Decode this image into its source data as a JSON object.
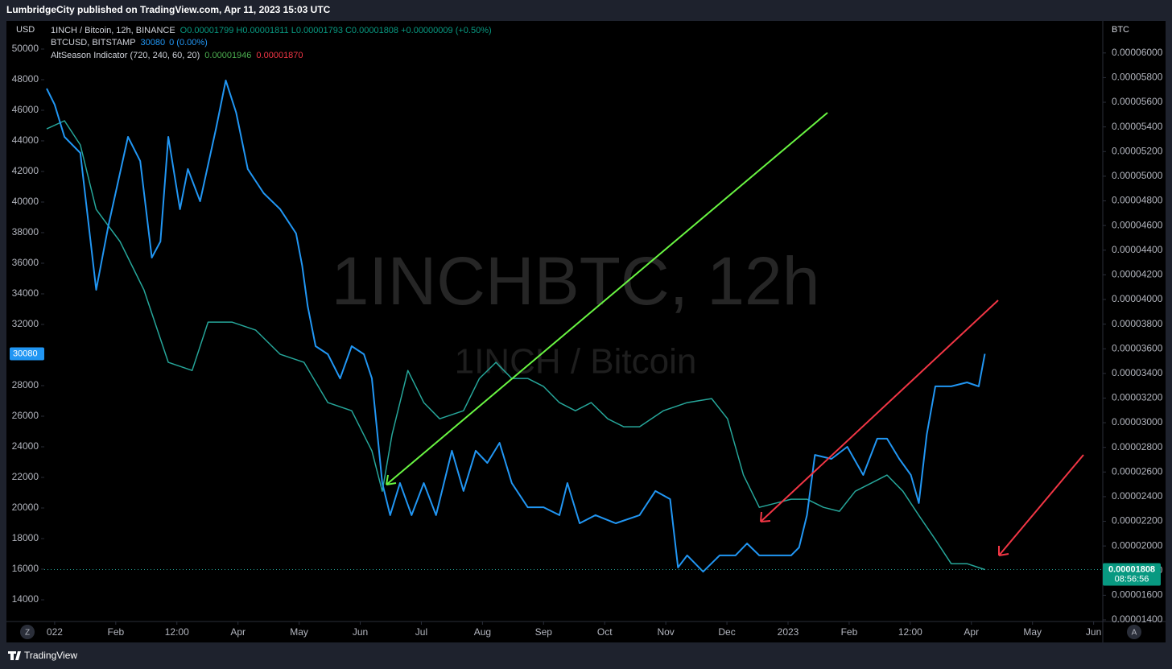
{
  "header": "LumbridgeCity published on TradingView.com, Apr 11, 2023 15:03 UTC",
  "footer": "TradingView",
  "buttons": [
    "Z",
    "A"
  ],
  "chart_data": {
    "type": "line",
    "watermark": "1INCHBTC, 12h",
    "watermark_sub": "1INCH / Bitcoin",
    "ylabel": "USD",
    "y2label": "BTC",
    "ohlc": "O0.00001799 H0.00001811 L0.00001793 C0.00001808 +0.00000009 (+0.50%)",
    "btc_last": "30080",
    "btc_change": "0 (0.00%)",
    "indicator": {
      "name": "AltSeason Indicator (720, 240, 60, 20)",
      "values": [
        "0.00001946",
        "0.00001870"
      ],
      "colors": [
        "#4caf50",
        "#f23645"
      ]
    },
    "left_tag": "30080",
    "right_tag": "0.00001808",
    "countdown": "08:56:56",
    "grid": false,
    "xlim": [
      -0.17,
      17.15
    ],
    "xticks": [
      {
        "value": 0,
        "label": "022"
      },
      {
        "value": 1,
        "label": "Feb"
      },
      {
        "value": 2,
        "label": "12:00"
      },
      {
        "value": 3,
        "label": "Apr"
      },
      {
        "value": 4,
        "label": "May"
      },
      {
        "value": 5,
        "label": "Jun"
      },
      {
        "value": 6,
        "label": "Jul"
      },
      {
        "value": 7,
        "label": "Aug"
      },
      {
        "value": 8,
        "label": "Sep"
      },
      {
        "value": 9,
        "label": "Oct"
      },
      {
        "value": 10,
        "label": "Nov"
      },
      {
        "value": 11,
        "label": "Dec"
      },
      {
        "value": 12,
        "label": "2023"
      },
      {
        "value": 13,
        "label": "Feb"
      },
      {
        "value": 14,
        "label": "12:00"
      },
      {
        "value": 15,
        "label": "Apr"
      },
      {
        "value": 16,
        "label": "May"
      },
      {
        "value": 17,
        "label": "Jun"
      }
    ],
    "ylim": [
      12580,
      51840
    ],
    "yticks": [
      14000,
      16000,
      18000,
      20000,
      22000,
      24000,
      26000,
      28000,
      30000,
      32000,
      34000,
      36000,
      38000,
      40000,
      42000,
      44000,
      46000,
      48000,
      50000
    ],
    "y2lim": [
      1.387e-05,
      6.26e-05
    ],
    "y2ticks": [
      {
        "value": 1.4e-05,
        "label": "0.00001400"
      },
      {
        "value": 1.6e-05,
        "label": "0.00001600"
      },
      {
        "value": 1.8e-05,
        "label": "0.00001800"
      },
      {
        "value": 2e-05,
        "label": "0.00002000"
      },
      {
        "value": 2.2e-05,
        "label": "0.00002200"
      },
      {
        "value": 2.4e-05,
        "label": "0.00002400"
      },
      {
        "value": 2.6e-05,
        "label": "0.00002600"
      },
      {
        "value": 2.8e-05,
        "label": "0.00002800"
      },
      {
        "value": 3e-05,
        "label": "0.00003000"
      },
      {
        "value": 3.2e-05,
        "label": "0.00003200"
      },
      {
        "value": 3.4e-05,
        "label": "0.00003400"
      },
      {
        "value": 3.6e-05,
        "label": "0.00003600"
      },
      {
        "value": 3.8e-05,
        "label": "0.00003800"
      },
      {
        "value": 4e-05,
        "label": "0.00004000"
      },
      {
        "value": 4.2e-05,
        "label": "0.00004200"
      },
      {
        "value": 4.4e-05,
        "label": "0.00004400"
      },
      {
        "value": 4.6e-05,
        "label": "0.00004600"
      },
      {
        "value": 4.8e-05,
        "label": "0.00004800"
      },
      {
        "value": 5e-05,
        "label": "0.00005000"
      },
      {
        "value": 5.2e-05,
        "label": "0.00005200"
      },
      {
        "value": 5.4e-05,
        "label": "0.00005400"
      },
      {
        "value": 5.6e-05,
        "label": "0.00005600"
      },
      {
        "value": 5.8e-05,
        "label": "0.00005800"
      },
      {
        "value": 6e-05,
        "label": "0.00006000"
      }
    ],
    "series": [
      {
        "name": "1INCH / Bitcoin, 12h, BINANCE",
        "color": "#26a69a",
        "axis": "y2",
        "x": [
          -0.13,
          0.16,
          0.42,
          0.68,
          1.07,
          1.46,
          1.86,
          2.25,
          2.51,
          2.9,
          3.29,
          3.69,
          4.08,
          4.47,
          4.86,
          5.19,
          5.36,
          5.52,
          5.78,
          6.04,
          6.3,
          6.69,
          6.95,
          7.22,
          7.48,
          7.74,
          8.0,
          8.26,
          8.52,
          8.78,
          9.05,
          9.31,
          9.57,
          9.96,
          10.35,
          10.75,
          11.01,
          11.27,
          11.53,
          11.79,
          12.05,
          12.31,
          12.58,
          12.84,
          13.1,
          13.36,
          13.62,
          13.88,
          14.14,
          14.41,
          14.67,
          14.93,
          15.22
        ],
        "values": [
          5.384e-05,
          5.45e-05,
          5.254e-05,
          4.731e-05,
          4.47e-05,
          4.078e-05,
          3.49e-05,
          3.424e-05,
          3.816e-05,
          3.816e-05,
          3.751e-05,
          3.555e-05,
          3.49e-05,
          3.163e-05,
          3.097e-05,
          2.771e-05,
          2.444e-05,
          2.902e-05,
          3.424e-05,
          3.163e-05,
          3.032e-05,
          3.097e-05,
          3.359e-05,
          3.49e-05,
          3.359e-05,
          3.359e-05,
          3.294e-05,
          3.163e-05,
          3.097e-05,
          3.163e-05,
          3.032e-05,
          2.967e-05,
          2.967e-05,
          3.097e-05,
          3.163e-05,
          3.196e-05,
          3.032e-05,
          2.575e-05,
          2.313e-05,
          2.346e-05,
          2.379e-05,
          2.379e-05,
          2.313e-05,
          2.281e-05,
          2.444e-05,
          2.509e-05,
          2.575e-05,
          2.444e-05,
          2.248e-05,
          2.052e-05,
          1.856e-05,
          1.856e-05,
          1.808e-05
        ]
      },
      {
        "name": "BTCUSD, BITSTAMP",
        "color": "#2196f3",
        "axis": "y",
        "x": [
          -0.13,
          0,
          0.16,
          0.42,
          0.68,
          0.88,
          1.2,
          1.4,
          1.59,
          1.73,
          1.86,
          2.05,
          2.18,
          2.38,
          2.64,
          2.8,
          2.97,
          3.16,
          3.42,
          3.69,
          3.95,
          4.05,
          4.14,
          4.27,
          4.47,
          4.67,
          4.86,
          5.06,
          5.19,
          5.36,
          5.49,
          5.65,
          5.84,
          6.04,
          6.24,
          6.5,
          6.69,
          6.89,
          7.08,
          7.28,
          7.48,
          7.74,
          8.0,
          8.26,
          8.39,
          8.59,
          8.85,
          9.18,
          9.57,
          9.83,
          10.07,
          10.2,
          10.35,
          10.61,
          10.88,
          11.14,
          11.33,
          11.53,
          11.79,
          12.05,
          12.18,
          12.31,
          12.44,
          12.71,
          12.97,
          13.23,
          13.46,
          13.62,
          13.82,
          14.01,
          14.14,
          14.27,
          14.41,
          14.67,
          14.93,
          15.12,
          15.22
        ],
        "values": [
          47420,
          46370,
          44260,
          43210,
          34260,
          38470,
          44260,
          42680,
          36370,
          37420,
          44260,
          39530,
          42160,
          40050,
          44790,
          47950,
          45840,
          42160,
          40580,
          39530,
          37950,
          35840,
          33210,
          30580,
          30050,
          28470,
          30580,
          30050,
          28470,
          21630,
          19530,
          21630,
          19530,
          21630,
          19530,
          23740,
          21110,
          23740,
          22950,
          24260,
          21630,
          20050,
          20050,
          19530,
          21630,
          19000,
          19530,
          19000,
          19530,
          21110,
          20580,
          16110,
          16900,
          15840,
          16900,
          16900,
          17680,
          16900,
          16900,
          16900,
          17420,
          19530,
          23470,
          23210,
          24000,
          22160,
          24530,
          24530,
          23210,
          22160,
          20320,
          24790,
          27950,
          27950,
          28210,
          27950,
          30080
        ]
      }
    ]
  }
}
